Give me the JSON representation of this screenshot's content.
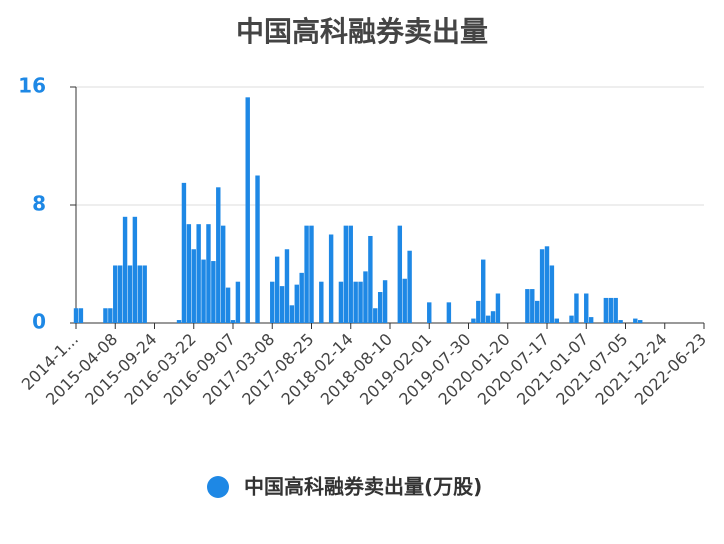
{
  "chart_data": {
    "type": "bar",
    "title": "中国高科融券卖出量",
    "categories": [
      "2014-1...",
      null,
      null,
      null,
      null,
      null,
      null,
      null,
      "2015-04-08",
      null,
      null,
      null,
      null,
      null,
      null,
      null,
      "2015-09-24",
      null,
      null,
      null,
      null,
      null,
      null,
      null,
      "2016-03-22",
      null,
      null,
      null,
      null,
      null,
      null,
      null,
      "2016-09-07",
      null,
      null,
      null,
      null,
      null,
      null,
      null,
      "2017-03-08",
      null,
      null,
      null,
      null,
      null,
      null,
      null,
      "2017-08-25",
      null,
      null,
      null,
      null,
      null,
      null,
      null,
      "2018-02-14",
      null,
      null,
      null,
      null,
      null,
      null,
      null,
      "2018-08-10",
      null,
      null,
      null,
      null,
      null,
      null,
      null,
      "2019-02-01",
      null,
      null,
      null,
      null,
      null,
      null,
      null,
      "2019-07-30",
      null,
      null,
      null,
      null,
      null,
      null,
      null,
      "2020-01-20",
      null,
      null,
      null,
      null,
      null,
      null,
      null,
      "2020-07-17",
      null,
      null,
      null,
      null,
      null,
      null,
      null,
      "2021-01-07",
      null,
      null,
      null,
      null,
      null,
      null,
      null,
      "2021-07-05",
      null,
      null,
      null,
      null,
      null,
      null,
      null,
      "2021-12-24",
      null,
      null,
      null,
      null,
      null,
      null,
      null,
      "2022-06-23"
    ],
    "series": [
      {
        "name": "中国高科融券卖出量(万股)",
        "color": "#1e88e5",
        "values": [
          1,
          1,
          0,
          0,
          0,
          0,
          1,
          1,
          3.9,
          3.9,
          7.2,
          3.9,
          7.2,
          3.9,
          3.9,
          0,
          0,
          0,
          0,
          0,
          0,
          0.2,
          9.5,
          6.7,
          5,
          6.7,
          4.3,
          6.7,
          4.2,
          9.2,
          6.6,
          2.4,
          0.2,
          2.8,
          0,
          15.3,
          0,
          10,
          0,
          0,
          2.8,
          4.5,
          2.5,
          5,
          1.2,
          2.6,
          3.4,
          6.6,
          6.6,
          0,
          2.8,
          0,
          6,
          0,
          2.8,
          6.6,
          6.6,
          2.8,
          2.8,
          3.5,
          5.9,
          1,
          2.1,
          2.9,
          0,
          0,
          6.6,
          3,
          4.9,
          0,
          0,
          0,
          1.4,
          0,
          0,
          0,
          1.4,
          0,
          0,
          0,
          0,
          0.3,
          1.5,
          4.3,
          0.5,
          0.8,
          2,
          0,
          0,
          0,
          0,
          0,
          2.3,
          2.3,
          1.5,
          5,
          5.2,
          3.9,
          0.3,
          0,
          0,
          0.5,
          2,
          0,
          2,
          0.4,
          0,
          0,
          1.7,
          1.7,
          1.7,
          0.2,
          0,
          0,
          0.3,
          0.2,
          0,
          0,
          0,
          0,
          0,
          0,
          0,
          0,
          0,
          0,
          0,
          0,
          0
        ]
      }
    ],
    "ylim": [
      0,
      16
    ],
    "yticks": [
      0,
      8,
      16
    ],
    "grid": true
  }
}
